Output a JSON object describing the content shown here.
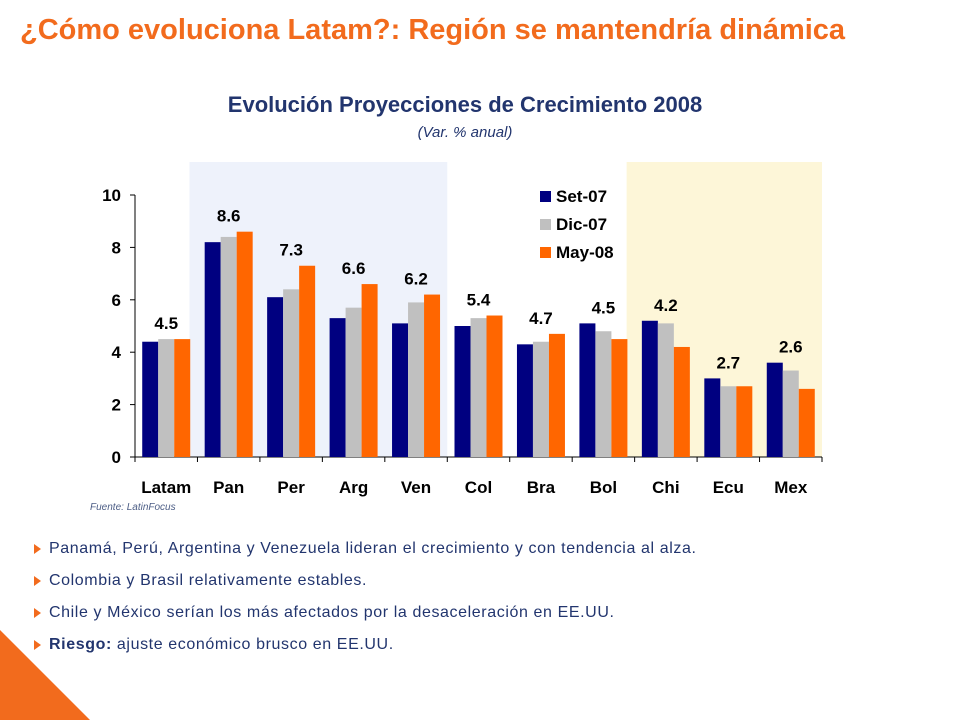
{
  "slide": {
    "title": "¿Cómo evoluciona Latam?: Región se mantendría dinámica",
    "source": "Fuente: LatinFocus"
  },
  "bullets": [
    {
      "lead": "",
      "text": "Panamá, Perú, Argentina y Venezuela lideran el crecimiento y con tendencia al alza."
    },
    {
      "lead": "",
      "text": "Colombia y Brasil relativamente estables."
    },
    {
      "lead": "",
      "text": "Chile y México serían los más afectados por la desaceleración en EE.UU."
    },
    {
      "lead": "Riesgo:",
      "text": " ajuste económico brusco en EE.UU."
    }
  ],
  "colors": {
    "accent": "#f26b1d",
    "text": "#22356e",
    "set07": "#000080",
    "dic07": "#c0c0c0",
    "may08": "#ff6600",
    "highlight_blue": "#eef2fb",
    "highlight_yellow": "#fdf6d8"
  },
  "chart_data": {
    "type": "bar",
    "title": "Evolución Proyecciones de Crecimiento 2008",
    "subtitle": "(Var. % anual)",
    "categories": [
      "Latam",
      "Pan",
      "Per",
      "Arg",
      "Ven",
      "Col",
      "Bra",
      "Bol",
      "Chi",
      "Ecu",
      "Mex"
    ],
    "series": [
      {
        "name": "Set-07",
        "color": "#000080",
        "values": [
          4.4,
          8.2,
          6.1,
          5.3,
          5.1,
          5.0,
          4.3,
          5.1,
          5.2,
          3.0,
          3.6
        ]
      },
      {
        "name": "Dic-07",
        "color": "#c0c0c0",
        "values": [
          4.5,
          8.4,
          6.4,
          5.7,
          5.9,
          5.3,
          4.4,
          4.8,
          5.1,
          2.7,
          3.3
        ]
      },
      {
        "name": "May-08",
        "color": "#ff6600",
        "values": [
          4.5,
          8.6,
          7.3,
          6.6,
          6.2,
          5.4,
          4.7,
          4.5,
          4.2,
          2.7,
          2.6
        ]
      }
    ],
    "data_labels": [
      "4.5",
      "8.6",
      "7.3",
      "6.6",
      "6.2",
      "5.4",
      "4.7",
      "4.5",
      "4.2",
      "2.7",
      "2.6"
    ],
    "ylim": [
      0,
      10
    ],
    "yticks": [
      "0",
      "2",
      "4",
      "6",
      "8",
      "10"
    ],
    "legend_position": "top-right",
    "grid": false,
    "highlights": [
      {
        "from": "Pan",
        "to": "Ven",
        "color": "#eef2fb"
      },
      {
        "from": "Chi",
        "to": "Mex",
        "color": "#fdf6d8"
      }
    ]
  }
}
